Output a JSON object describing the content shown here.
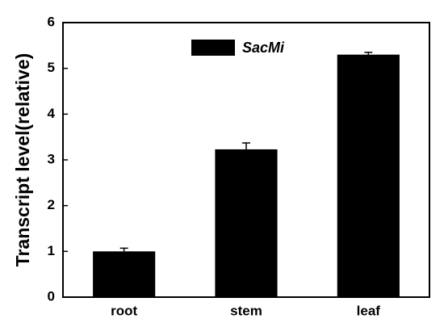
{
  "chart_data": {
    "type": "bar",
    "ylabel": "Transcript level(relative)",
    "categories": [
      "root",
      "stem",
      "leaf"
    ],
    "series": [
      {
        "name": "SacMi",
        "color": "#000000",
        "values": [
          1.0,
          3.23,
          5.3
        ],
        "errors": [
          0.07,
          0.14,
          0.05
        ]
      }
    ],
    "ylim": [
      0,
      6
    ],
    "yticks": [
      0,
      1,
      2,
      3,
      4,
      5,
      6
    ]
  }
}
